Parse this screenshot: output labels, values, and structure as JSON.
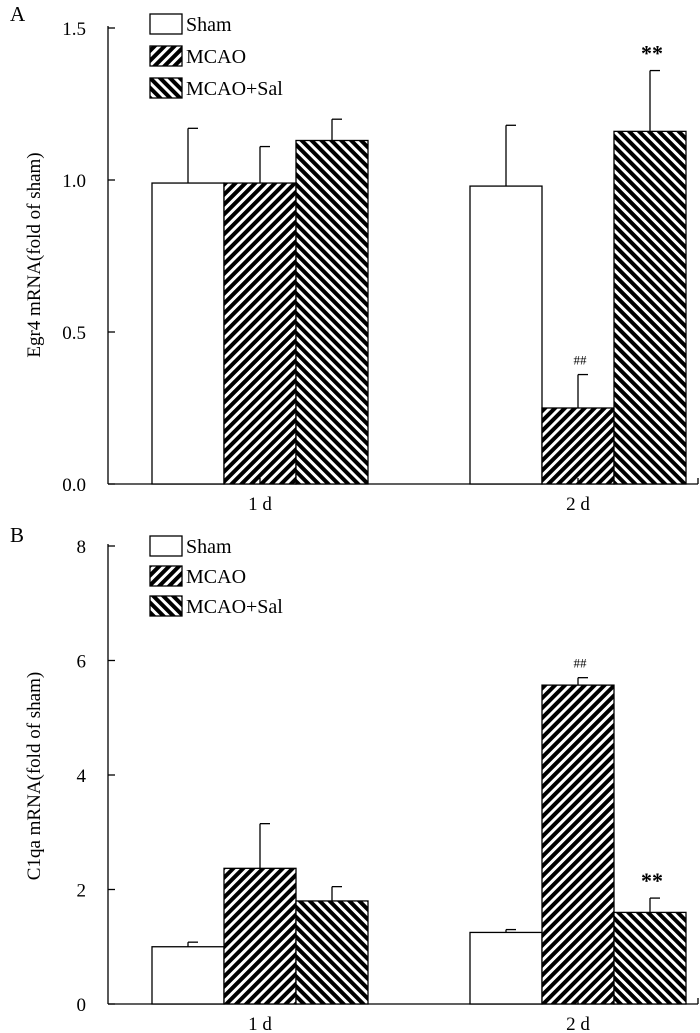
{
  "chart_data": [
    {
      "type": "bar",
      "panel_label": "A",
      "ylabel": "Egr4 mRNA(fold of sham)",
      "xlabel": "",
      "ylim": [
        0,
        1.5
      ],
      "yticks": [
        "0.0",
        "0.5",
        "1.0",
        "1.5"
      ],
      "categories": [
        "1 d",
        "2 d"
      ],
      "legend_position": "top-left",
      "series": [
        {
          "name": "Sham",
          "values": [
            0.99,
            0.98
          ],
          "errors": [
            0.18,
            0.2
          ],
          "annotations": [
            "",
            ""
          ]
        },
        {
          "name": "MCAO",
          "values": [
            0.99,
            0.25
          ],
          "errors": [
            0.12,
            0.11
          ],
          "annotations": [
            "",
            "##"
          ]
        },
        {
          "name": "MCAO+Sal",
          "values": [
            1.13,
            1.16
          ],
          "errors": [
            0.07,
            0.2
          ],
          "annotations": [
            "",
            "**"
          ]
        }
      ]
    },
    {
      "type": "bar",
      "panel_label": "B",
      "ylabel": "C1qa mRNA(fold of sham)",
      "xlabel": "",
      "ylim": [
        0,
        8
      ],
      "yticks": [
        "0",
        "2",
        "4",
        "6",
        "8"
      ],
      "categories": [
        "1 d",
        "2 d"
      ],
      "legend_position": "top-left",
      "series": [
        {
          "name": "Sham",
          "values": [
            1.0,
            1.25
          ],
          "errors": [
            0.08,
            0.05
          ],
          "annotations": [
            "",
            ""
          ]
        },
        {
          "name": "MCAO",
          "values": [
            2.37,
            5.57
          ],
          "errors": [
            0.78,
            0.13
          ],
          "annotations": [
            "",
            "##"
          ]
        },
        {
          "name": "MCAO+Sal",
          "values": [
            1.8,
            1.6
          ],
          "errors": [
            0.25,
            0.25
          ],
          "annotations": [
            "",
            "**"
          ]
        }
      ]
    }
  ]
}
